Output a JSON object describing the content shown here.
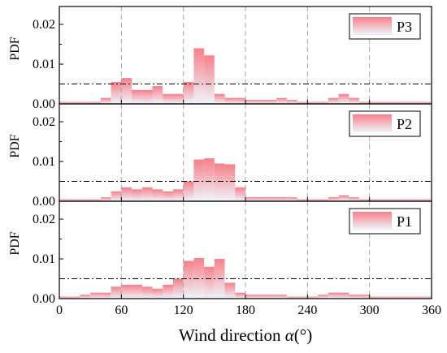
{
  "chart_data": [
    {
      "type": "bar",
      "panel": "P3",
      "legend_label": "P3",
      "ylabel": "PDF",
      "xlim": [
        0,
        360
      ],
      "ylim": [
        0,
        0.0245
      ],
      "yticks": [
        0.0,
        0.01,
        0.02
      ],
      "ytick_labels": [
        "0.00",
        "0.01",
        "0.02"
      ],
      "reference_line": 0.005,
      "bin_width": 10,
      "x": [
        5,
        15,
        25,
        35,
        45,
        55,
        65,
        75,
        85,
        95,
        105,
        115,
        125,
        135,
        145,
        155,
        165,
        175,
        185,
        195,
        205,
        215,
        225,
        235,
        245,
        255,
        265,
        275,
        285,
        295,
        305,
        315,
        325,
        335,
        345,
        355
      ],
      "values": [
        0.0005,
        0.0005,
        0.0005,
        0.0005,
        0.0015,
        0.0055,
        0.0065,
        0.0035,
        0.0035,
        0.0045,
        0.0025,
        0.0025,
        0.0055,
        0.014,
        0.0122,
        0.0025,
        0.0015,
        0.0015,
        0.001,
        0.001,
        0.001,
        0.0015,
        0.001,
        0.0005,
        0.0005,
        0.0005,
        0.0015,
        0.0025,
        0.0015,
        0.0005,
        0.0005,
        0.0005,
        0.0005,
        0.0005,
        0.0005,
        0.0005
      ]
    },
    {
      "type": "bar",
      "panel": "P2",
      "legend_label": "P2",
      "ylabel": "PDF",
      "xlim": [
        0,
        360
      ],
      "ylim": [
        0,
        0.0245
      ],
      "yticks": [
        0.0,
        0.01,
        0.02
      ],
      "ytick_labels": [
        "0.00",
        "0.01",
        "0.02"
      ],
      "reference_line": 0.005,
      "bin_width": 10,
      "x": [
        5,
        15,
        25,
        35,
        45,
        55,
        65,
        75,
        85,
        95,
        105,
        115,
        125,
        135,
        145,
        155,
        165,
        175,
        185,
        195,
        205,
        215,
        225,
        235,
        245,
        255,
        265,
        275,
        285,
        295,
        305,
        315,
        325,
        335,
        345,
        355
      ],
      "values": [
        0.0005,
        0.0005,
        0.0005,
        0.0005,
        0.001,
        0.0025,
        0.0035,
        0.003,
        0.0035,
        0.003,
        0.0025,
        0.003,
        0.005,
        0.0105,
        0.0108,
        0.0095,
        0.0093,
        0.0035,
        0.001,
        0.001,
        0.001,
        0.001,
        0.001,
        0.0005,
        0.0005,
        0.0005,
        0.001,
        0.0015,
        0.001,
        0.0005,
        0.0005,
        0.0005,
        0.0005,
        0.0005,
        0.0005,
        0.0005
      ]
    },
    {
      "type": "bar",
      "panel": "P1",
      "legend_label": "P1",
      "ylabel": "PDF",
      "xlim": [
        0,
        360
      ],
      "ylim": [
        0,
        0.0245
      ],
      "yticks": [
        0.0,
        0.01,
        0.02
      ],
      "ytick_labels": [
        "0.00",
        "0.01",
        "0.02"
      ],
      "reference_line": 0.005,
      "bin_width": 10,
      "x": [
        5,
        15,
        25,
        35,
        45,
        55,
        65,
        75,
        85,
        95,
        105,
        115,
        125,
        135,
        145,
        155,
        165,
        175,
        185,
        195,
        205,
        215,
        225,
        235,
        245,
        255,
        265,
        275,
        285,
        295,
        305,
        315,
        325,
        335,
        345,
        355
      ],
      "values": [
        0.0005,
        0.0005,
        0.001,
        0.0015,
        0.0015,
        0.003,
        0.0035,
        0.0035,
        0.003,
        0.0025,
        0.0035,
        0.005,
        0.0095,
        0.0102,
        0.008,
        0.01,
        0.004,
        0.0015,
        0.001,
        0.001,
        0.001,
        0.001,
        0.0005,
        0.0005,
        0.0005,
        0.001,
        0.0015,
        0.0015,
        0.001,
        0.001,
        0.0005,
        0.0005,
        0.0005,
        0.0005,
        0.0005,
        0.0005
      ]
    }
  ],
  "x_axis": {
    "ticks": [
      0,
      60,
      120,
      180,
      240,
      300,
      360
    ],
    "tick_labels": [
      "0",
      "60",
      "120",
      "180",
      "240",
      "300",
      "360"
    ],
    "vertical_gridlines_at": [
      60,
      120,
      180,
      240,
      300
    ],
    "title_text": "Wind direction ",
    "title_symbol": "α",
    "title_unit": "(°)"
  },
  "colors": {
    "bar_top": "#f7808a",
    "bar_bottom": "#eef4fb",
    "grid_dashed": "#a6a6a6",
    "reference_line": "#000000",
    "axis": "#000000"
  }
}
